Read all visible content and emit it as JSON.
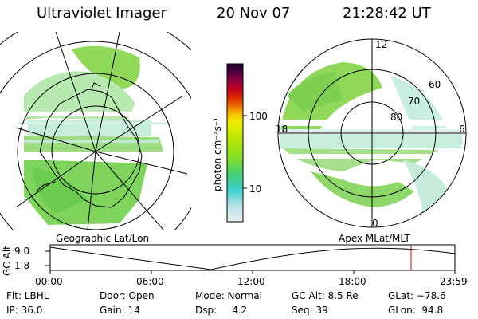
{
  "header": {
    "title": "Ultraviolet Imager",
    "date": "20 Nov 07",
    "time": "21:28:42 UT"
  },
  "left_panel": {
    "caption": "Geographic Lat/Lon"
  },
  "right_panel": {
    "caption": "Apex  MLat/MLT",
    "mlt_labels": [
      "12",
      "18",
      "6",
      "0"
    ],
    "lat_labels": [
      "60",
      "70",
      "80"
    ]
  },
  "colorbar": {
    "unit_label": "photon cm⁻²s⁻¹",
    "tick_labels": [
      "100",
      "10"
    ],
    "colors": [
      "#e8eef0",
      "#b8e4e8",
      "#3ccfd0",
      "#44d070",
      "#8be020",
      "#c4e800",
      "#f0f000",
      "#f8c000",
      "#f07000",
      "#e03000",
      "#c00020",
      "#8a0040",
      "#4a0040",
      "#20002a"
    ]
  },
  "altitude_strip": {
    "ylabel": "GC Alt",
    "y_ticks": [
      "9.0",
      "1.8"
    ],
    "x_ticks": [
      "00:00",
      "06:00",
      "12:00",
      "18:00",
      "23:59"
    ],
    "marker_color": "#dd0000"
  },
  "info": {
    "flt": "Flt: LBHL",
    "ip": "IP: 36.0",
    "door": "Door: Open",
    "gain": "Gain: 14",
    "mode": "Mode: Normal",
    "dsp": "Dsp:     4.2",
    "gcalt": "GC Alt: 8.5 Re",
    "seq": "Seq: 39",
    "glat": "GLat: −78.6",
    "glon": "GLon:  94.8"
  }
}
